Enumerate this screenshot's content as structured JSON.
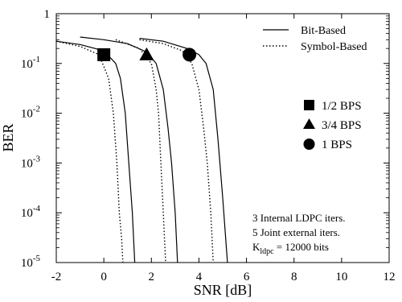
{
  "chart_data": {
    "type": "line",
    "xlabel": "SNR [dB]",
    "ylabel": "BER",
    "xlim": [
      -2,
      12
    ],
    "ylim": [
      1e-05,
      1
    ],
    "y_scale": "log",
    "grid": false,
    "x_ticks": [
      "-2",
      "0",
      "2",
      "4",
      "6",
      "8",
      "10",
      "12"
    ],
    "y_ticks": [
      {
        "value": 1,
        "base": "1",
        "exp": ""
      },
      {
        "value": 0.1,
        "base": "10",
        "exp": "-1"
      },
      {
        "value": 0.01,
        "base": "10",
        "exp": "-2"
      },
      {
        "value": 0.001,
        "base": "10",
        "exp": "-3"
      },
      {
        "value": 0.0001,
        "base": "10",
        "exp": "-4"
      },
      {
        "value": 1e-05,
        "base": "10",
        "exp": "-5"
      }
    ],
    "line_legend": [
      {
        "label": "Bit-Based",
        "style": "solid"
      },
      {
        "label": "Symbol-Based",
        "style": "dotted"
      }
    ],
    "marker_legend": [
      {
        "label": "1/2 BPS",
        "marker": "square"
      },
      {
        "label": "3/4 BPS",
        "marker": "triangle"
      },
      {
        "label": "1 BPS",
        "marker": "circle"
      }
    ],
    "annotation": {
      "line1": "3 Internal LDPC iters.",
      "line2": "5 Joint external iters.",
      "line3_prefix": "K",
      "line3_sub": "ldpc",
      "line3_suffix": " = 12000 bits"
    },
    "series": [
      {
        "style": "solid",
        "marker": "square",
        "x": [
          -2,
          -1,
          0,
          0.5,
          0.7,
          0.9,
          1.05,
          1.2,
          1.3
        ],
        "y": [
          0.28,
          0.24,
          0.18,
          0.1,
          0.05,
          0.01,
          0.001,
          0.0001,
          1e-05
        ]
      },
      {
        "style": "dotted",
        "marker": "square",
        "x": [
          -2,
          -1,
          -0.2,
          0.2,
          0.4,
          0.55,
          0.65,
          0.75,
          0.8
        ],
        "y": [
          0.28,
          0.22,
          0.15,
          0.05,
          0.01,
          0.001,
          0.0001,
          3e-05,
          1e-05
        ]
      },
      {
        "style": "solid",
        "marker": "triangle",
        "x": [
          -1,
          0,
          1,
          1.8,
          2.2,
          2.5,
          2.7,
          2.85,
          3.0,
          3.1
        ],
        "y": [
          0.34,
          0.3,
          0.25,
          0.17,
          0.1,
          0.03,
          0.005,
          0.001,
          0.0001,
          1e-05
        ]
      },
      {
        "style": "dotted",
        "marker": "triangle",
        "x": [
          0.5,
          1.5,
          2.0,
          2.2,
          2.3,
          2.4,
          2.5,
          2.6
        ],
        "y": [
          0.3,
          0.2,
          0.1,
          0.03,
          0.01,
          0.001,
          0.0001,
          1e-05
        ]
      },
      {
        "style": "solid",
        "marker": "circle",
        "x": [
          1.5,
          2.5,
          3.5,
          4.0,
          4.3,
          4.6,
          4.8,
          5.0,
          5.2
        ],
        "y": [
          0.32,
          0.28,
          0.2,
          0.15,
          0.1,
          0.03,
          0.003,
          0.0002,
          1e-05
        ]
      },
      {
        "style": "dotted",
        "marker": "circle",
        "x": [
          1.5,
          2.5,
          3.3,
          3.7,
          4.0,
          4.2,
          4.35,
          4.5,
          4.6
        ],
        "y": [
          0.3,
          0.25,
          0.18,
          0.1,
          0.03,
          0.005,
          0.001,
          0.0001,
          1e-05
        ]
      }
    ],
    "markers": [
      {
        "marker": "square",
        "x": 0,
        "y": 0.15
      },
      {
        "marker": "triangle",
        "x": 1.8,
        "y": 0.15
      },
      {
        "marker": "circle",
        "x": 3.6,
        "y": 0.15
      }
    ]
  }
}
